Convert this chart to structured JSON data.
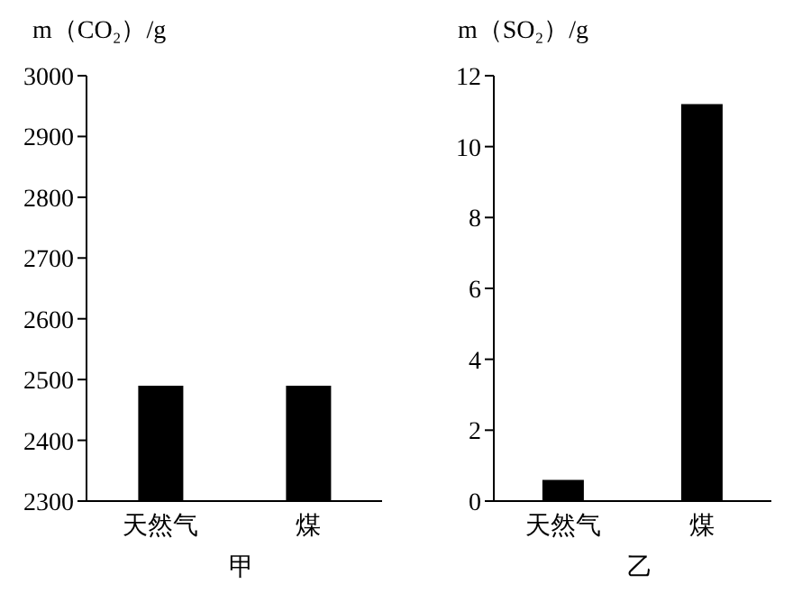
{
  "chart_data": [
    {
      "type": "bar",
      "ylabel": "m（CO₂）/g",
      "xlabel": "甲",
      "categories": [
        "天然气",
        "煤"
      ],
      "values": [
        2490,
        2490
      ],
      "color": "#000000",
      "ylim": [
        2300,
        3000
      ],
      "yticks": [
        2300,
        2400,
        2500,
        2600,
        2700,
        2800,
        2900,
        3000
      ]
    },
    {
      "type": "bar",
      "ylabel": "m（SO₂）/g",
      "xlabel": "乙",
      "categories": [
        "天然气",
        "煤"
      ],
      "values": [
        0.6,
        11.2
      ],
      "color": "#000000",
      "ylim": [
        0,
        12
      ],
      "yticks": [
        0,
        2,
        4,
        6,
        8,
        10,
        12
      ]
    }
  ]
}
